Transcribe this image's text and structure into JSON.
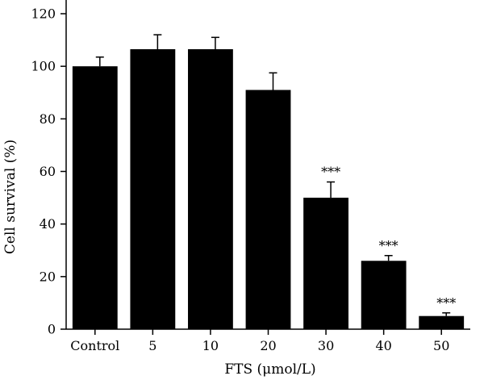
{
  "chart_data": {
    "type": "bar",
    "xlabel": "FTS (μmol/L)",
    "ylabel": "Cell survival (%)",
    "ylim": [
      0,
      120
    ],
    "yticks": [
      0,
      20,
      40,
      60,
      80,
      100,
      120
    ],
    "categories": [
      "Control",
      "5",
      "10",
      "20",
      "30",
      "40",
      "50"
    ],
    "values": [
      100,
      106.5,
      106.5,
      91,
      50,
      26,
      5
    ],
    "errors": [
      3.5,
      5.5,
      4.5,
      6.5,
      6,
      2,
      1.2
    ],
    "annotations": [
      "",
      "",
      "",
      "",
      "***",
      "***",
      "***"
    ],
    "bar_color": "#000000",
    "grid": false,
    "legend": "none"
  }
}
